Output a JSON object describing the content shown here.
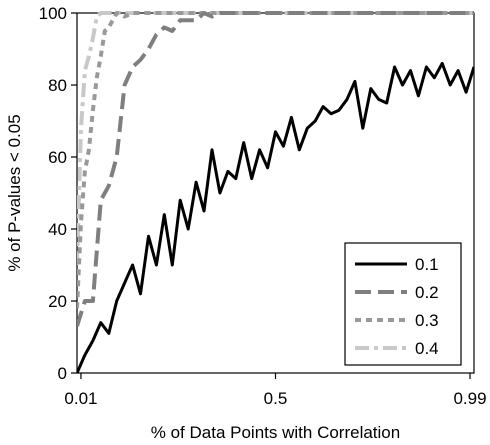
{
  "chart_data": {
    "type": "line",
    "title": "",
    "xlabel": "% of Data Points with Correlation",
    "ylabel": "% of P-values < 0.05",
    "xlim": [
      0,
      1
    ],
    "ylim": [
      0,
      100
    ],
    "x_ticks": [
      0.01,
      0.5,
      0.99
    ],
    "x_tick_labels": [
      "0.01",
      "0.5",
      "0.99"
    ],
    "y_ticks": [
      0,
      20,
      40,
      60,
      80,
      100
    ],
    "y_tick_labels": [
      "0",
      "20",
      "40",
      "60",
      "80",
      "100"
    ],
    "grid": false,
    "legend_position": "bottom-right",
    "series": [
      {
        "name": "0.1",
        "color": "#000000",
        "dash": "solid",
        "x": [
          0.0,
          0.02,
          0.04,
          0.06,
          0.08,
          0.1,
          0.12,
          0.14,
          0.16,
          0.18,
          0.2,
          0.22,
          0.24,
          0.26,
          0.28,
          0.3,
          0.32,
          0.34,
          0.36,
          0.38,
          0.4,
          0.42,
          0.44,
          0.46,
          0.48,
          0.5,
          0.52,
          0.54,
          0.56,
          0.58,
          0.6,
          0.62,
          0.64,
          0.66,
          0.68,
          0.7,
          0.72,
          0.74,
          0.76,
          0.78,
          0.8,
          0.82,
          0.84,
          0.86,
          0.88,
          0.9,
          0.92,
          0.94,
          0.96,
          0.98,
          1.0
        ],
        "y": [
          0,
          5,
          9,
          14,
          11,
          20,
          25,
          30,
          22,
          38,
          30,
          44,
          30,
          48,
          40,
          53,
          45,
          62,
          50,
          56,
          54,
          64,
          54,
          62,
          57,
          67,
          63,
          71,
          62,
          68,
          70,
          74,
          72,
          73,
          76,
          81,
          68,
          79,
          76,
          75,
          85,
          80,
          84,
          77,
          85,
          82,
          86,
          80,
          84,
          78,
          85
        ]
      },
      {
        "name": "0.2",
        "color": "#7f7f7f",
        "dash": "long-dash",
        "x": [
          0.0,
          0.02,
          0.04,
          0.06,
          0.08,
          0.1,
          0.12,
          0.14,
          0.16,
          0.18,
          0.2,
          0.22,
          0.24,
          0.26,
          0.28,
          0.3,
          0.32,
          0.34,
          0.36,
          0.4,
          0.45,
          0.5,
          0.6,
          0.7,
          0.8,
          0.9,
          1.0
        ],
        "y": [
          13,
          20,
          20,
          48,
          52,
          60,
          80,
          85,
          87,
          90,
          94,
          96,
          95,
          98,
          98,
          98,
          100,
          99,
          100,
          100,
          100,
          100,
          100,
          100,
          100,
          100,
          100
        ]
      },
      {
        "name": "0.3",
        "color": "#999999",
        "dash": "short-dash",
        "x": [
          0.0,
          0.01,
          0.02,
          0.03,
          0.04,
          0.05,
          0.06,
          0.07,
          0.08,
          0.09,
          0.1,
          0.12,
          0.14,
          0.16,
          0.2,
          0.3,
          0.4,
          0.5,
          0.6,
          0.7,
          0.8,
          0.9,
          1.0
        ],
        "y": [
          18,
          42,
          56,
          62,
          73,
          82,
          88,
          95,
          96,
          98,
          100,
          99,
          100,
          100,
          100,
          100,
          100,
          100,
          100,
          100,
          100,
          100,
          100
        ]
      },
      {
        "name": "0.4",
        "color": "#c8c8c8",
        "dash": "dash-dot",
        "x": [
          0.0,
          0.01,
          0.02,
          0.03,
          0.04,
          0.05,
          0.06,
          0.08,
          0.1,
          0.15,
          0.2,
          0.3,
          0.4,
          0.5,
          0.6,
          0.7,
          0.8,
          0.9,
          1.0
        ],
        "y": [
          30,
          68,
          84,
          88,
          93,
          99,
          100,
          100,
          100,
          100,
          100,
          100,
          100,
          100,
          100,
          100,
          100,
          100,
          100
        ]
      }
    ]
  }
}
